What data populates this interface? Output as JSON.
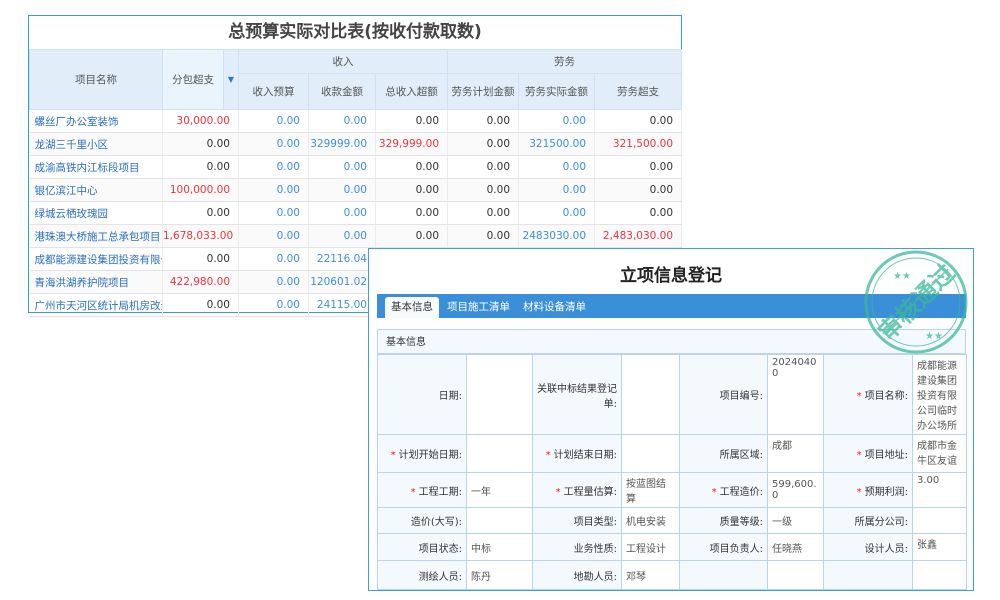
{
  "budget_table": {
    "title": "总预算实际对比表(按收付款取数)",
    "headers": {
      "name": "项目名称",
      "subcontract_over": "分包超支",
      "income": "收入",
      "income_budget": "收入预算",
      "received": "收款金额",
      "total_income_over": "总收入超额",
      "labor": "劳务",
      "labor_plan": "劳务计划金额",
      "labor_actual": "劳务实际金额",
      "labor_over": "劳务超支"
    },
    "rows": [
      [
        "螺丝厂办公室装饰",
        "30,000.00",
        "0.00",
        "0.00",
        "0.00",
        "0.00",
        "0.00",
        "0.00"
      ],
      [
        "龙湖三千里小区",
        "0.00",
        "0.00",
        "329999.00",
        "329,999.00",
        "0.00",
        "321500.00",
        "321,500.00"
      ],
      [
        "成渝高铁内江标段项目",
        "0.00",
        "0.00",
        "0.00",
        "0.00",
        "0.00",
        "0.00",
        "0.00"
      ],
      [
        "银亿滨江中心",
        "100,000.00",
        "0.00",
        "0.00",
        "0.00",
        "0.00",
        "0.00",
        "0.00"
      ],
      [
        "绿城云栖玫瑰园",
        "0.00",
        "0.00",
        "0.00",
        "0.00",
        "0.00",
        "0.00",
        "0.00"
      ],
      [
        "港珠澳大桥施工总承包项目",
        "1,678,033.00",
        "0.00",
        "0.00",
        "0.00",
        "0.00",
        "2483030.00",
        "2,483,030.00"
      ],
      [
        "成都能源建设集团投资有限公",
        "0.00",
        "0.00",
        "22116.04",
        "",
        "",
        "",
        ""
      ],
      [
        "青海洪湖养护院项目",
        "422,980.00",
        "0.00",
        "120601.02",
        "",
        "",
        "",
        ""
      ],
      [
        "广州市天河区统计局机房改造",
        "0.00",
        "0.00",
        "24115.00",
        "",
        "",
        "",
        ""
      ]
    ]
  },
  "project_form": {
    "title": "立项信息登记",
    "tabs": [
      "基本信息",
      "项目施工清单",
      "材料设备清单"
    ],
    "section": "基本信息",
    "stamp_text": "审核通过",
    "rows": [
      [
        {
          "label": "日期:",
          "value": ""
        },
        {
          "label": "关联中标结果登记单:",
          "value": ""
        },
        {
          "label": "项目编号:",
          "value": "20240400"
        },
        {
          "label": "项目名称:",
          "value": "成都能源建设集团投资有限公司临时办公场所",
          "required": true
        }
      ],
      [
        {
          "label": "计划开始日期:",
          "value": "",
          "required": true
        },
        {
          "label": "计划结束日期:",
          "value": "",
          "required": true
        },
        {
          "label": "所属区域:",
          "value": "成都"
        },
        {
          "label": "项目地址:",
          "value": "成都市金牛区友谊",
          "required": true
        }
      ],
      [
        {
          "label": "工程工期:",
          "value": "一年",
          "required": true
        },
        {
          "label": "工程量估算:",
          "value": "按蓝图结算",
          "required": true
        },
        {
          "label": "工程造价:",
          "value": "599,600.0",
          "required": true
        },
        {
          "label": "预期利润:",
          "value": "3.00",
          "required": true
        }
      ],
      [
        {
          "label": "造价(大写):",
          "value": ""
        },
        {
          "label": "项目类型:",
          "value": "机电安装"
        },
        {
          "label": "质量等级:",
          "value": "一级"
        },
        {
          "label": "所属分公司:",
          "value": ""
        }
      ],
      [
        {
          "label": "项目状态:",
          "value": "中标"
        },
        {
          "label": "业务性质:",
          "value": "工程设计"
        },
        {
          "label": "项目负责人:",
          "value": "任晓燕"
        },
        {
          "label": "设计人员:",
          "value": "张鑫"
        }
      ],
      [
        {
          "label": "测绘人员:",
          "value": "陈丹"
        },
        {
          "label": "地勘人员:",
          "value": "邓琴"
        },
        {
          "label": "",
          "value": ""
        },
        {
          "label": "",
          "value": ""
        }
      ]
    ]
  },
  "colors": {
    "accent": "#3a8fd8",
    "over_red": "#f0323c",
    "value_blue": "#3d8ee0",
    "stamp": "#3cb89a"
  }
}
